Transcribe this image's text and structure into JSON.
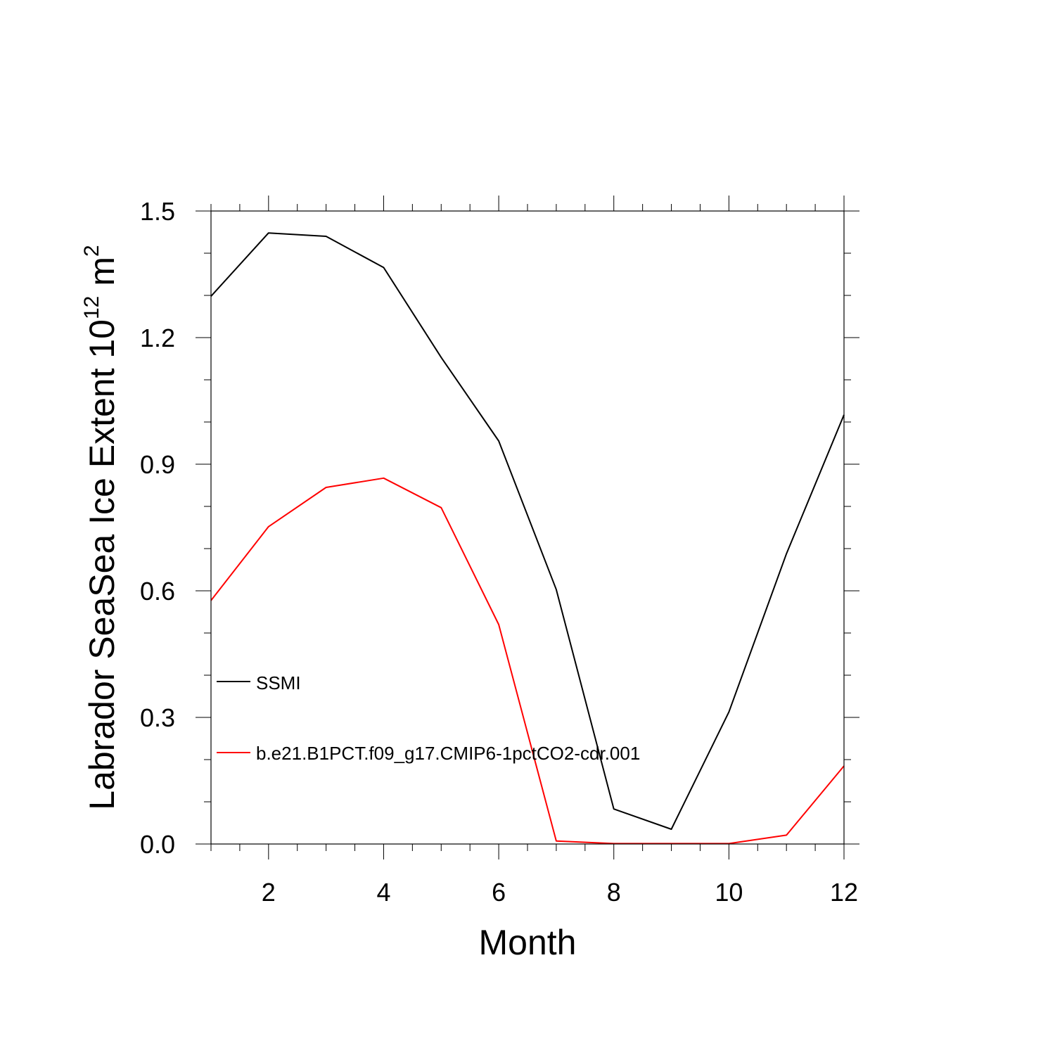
{
  "chart_data": {
    "type": "line",
    "title": "",
    "xlabel": "Month",
    "ylabel_main": "Labrador SeaSea Ice Extent 10",
    "ylabel_exp": "12",
    "ylabel_unit": "m",
    "ylabel_unit_exp": "2",
    "xlim": [
      1,
      12
    ],
    "ylim": [
      0,
      1.5
    ],
    "x_ticks": [
      2,
      4,
      6,
      8,
      10,
      12
    ],
    "x_tick_labels": [
      "2",
      "4",
      "6",
      "8",
      "10",
      "12"
    ],
    "y_ticks": [
      0,
      0.3,
      0.6,
      0.9,
      1.2,
      1.5
    ],
    "y_tick_labels": [
      "0.0",
      "0.3",
      "0.6",
      "0.9",
      "1.2",
      "1.5"
    ],
    "x": [
      1,
      2,
      3,
      4,
      5,
      6,
      7,
      8,
      9,
      10,
      11,
      12
    ],
    "series": [
      {
        "name": "SSMI",
        "color": "#000000",
        "values": [
          1.298,
          1.448,
          1.44,
          1.366,
          1.153,
          0.955,
          0.603,
          0.083,
          0.035,
          0.313,
          0.688,
          1.017
        ]
      },
      {
        "name": "b.e21.B1PCT.f09_g17.CMIP6-1pctCO2-cdr.001",
        "color": "#ff0000",
        "values": [
          0.577,
          0.752,
          0.845,
          0.867,
          0.797,
          0.52,
          0.007,
          0.001,
          0.001,
          0.001,
          0.021,
          0.185
        ]
      }
    ],
    "legend_placement": "lower-left inside"
  }
}
